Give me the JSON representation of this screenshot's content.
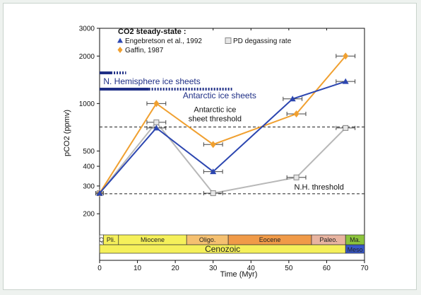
{
  "chart_data": {
    "type": "line",
    "xlabel": "Time (Myr)",
    "ylabel": "pCO2 (ppmv)",
    "xlim": [
      0,
      70
    ],
    "ylim": [
      150,
      3000
    ],
    "yscale": "log",
    "grid": false,
    "x_ticks": [
      "0",
      "10",
      "20",
      "30",
      "40",
      "50",
      "60",
      "70"
    ],
    "y_ticks": [
      "200",
      "300",
      "400",
      "500",
      "1000",
      "2000",
      "3000"
    ],
    "legend": {
      "title": "CO2 steady-state :",
      "placement": "top-left"
    },
    "series": [
      {
        "name": "Engebretson et al., 1992",
        "color": "#2c46b0",
        "marker": "triangle",
        "x": [
          0,
          15,
          30,
          51,
          65
        ],
        "y": [
          270,
          700,
          370,
          1070,
          1380
        ],
        "xerr": [
          1,
          2.5,
          2.5,
          2.5,
          2.5
        ]
      },
      {
        "name": "Gaffin, 1987",
        "color": "#f0a030",
        "marker": "diamond",
        "x": [
          0,
          15,
          30,
          52,
          65
        ],
        "y": [
          270,
          1000,
          550,
          860,
          2000
        ],
        "xerr": [
          1,
          2.5,
          2.5,
          2.5,
          2.5
        ]
      },
      {
        "name": "PD degassing rate",
        "color": "#b8b8b8",
        "marker": "square",
        "x": [
          0,
          15,
          30,
          52,
          65
        ],
        "y": [
          270,
          760,
          270,
          340,
          700
        ],
        "xerr": [
          1,
          2.5,
          2.5,
          2.5,
          2.5
        ]
      }
    ],
    "thresholds": [
      {
        "label": "Antarctic ice sheet threshold",
        "label_line1": "Antarctic ice",
        "label_line2": "sheet threshold",
        "y": 710
      },
      {
        "label": "N.H. threshold",
        "y": 268
      }
    ],
    "ice_sheets": [
      {
        "label": "N. Hemisphere ice sheets",
        "solid": [
          0,
          3
        ],
        "dotted": [
          3,
          7
        ]
      },
      {
        "label": "Antarctic ice sheets",
        "solid": [
          0,
          13
        ],
        "dotted": [
          13,
          35
        ]
      }
    ],
    "epochs": [
      {
        "label": "Q",
        "start": 0,
        "end": 1
      },
      {
        "label": "Pli.",
        "start": 1,
        "end": 5
      },
      {
        "label": "Miocene",
        "start": 5,
        "end": 23
      },
      {
        "label": "Oligo.",
        "start": 23,
        "end": 34
      },
      {
        "label": "Eocene",
        "start": 34,
        "end": 56
      },
      {
        "label": "Paleo.",
        "start": 56,
        "end": 65
      },
      {
        "label": "Ma.",
        "start": 65,
        "end": 70
      }
    ],
    "eras": [
      {
        "label": "Cenozoic",
        "start": 0,
        "end": 65
      },
      {
        "label": "Meso",
        "start": 65,
        "end": 70
      }
    ]
  },
  "colors": {
    "epoch_fill": [
      "#ffffff",
      "#f5f05a",
      "#f5f05a",
      "#f5c070",
      "#f09a48",
      "#e8b4a0",
      "#8cc43c"
    ],
    "era_fill": [
      "#f5f05a",
      "#3858c8"
    ],
    "ice_sheets": "#1f2f86"
  }
}
